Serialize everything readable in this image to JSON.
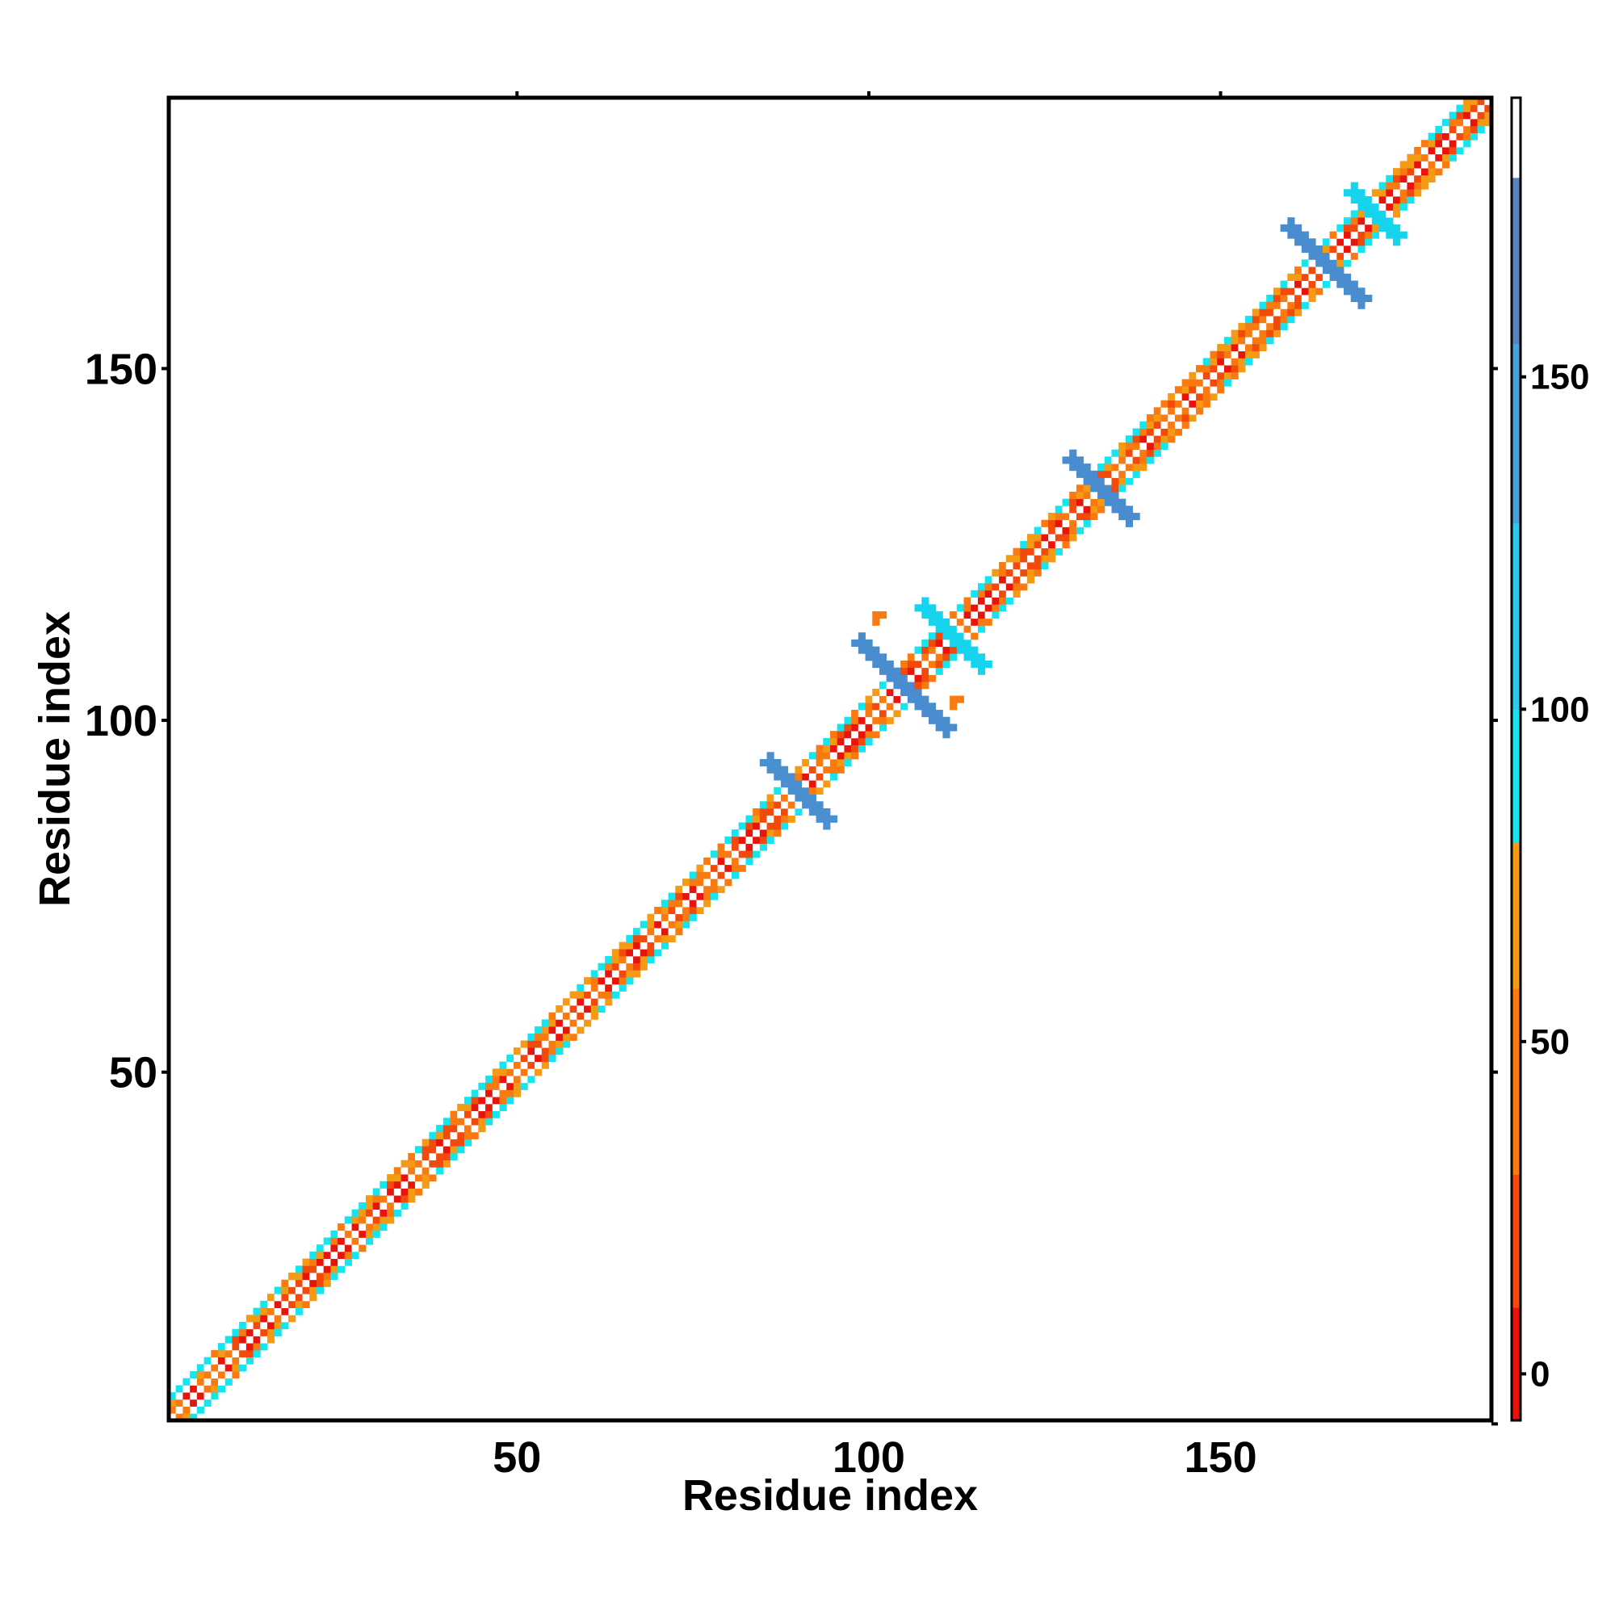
{
  "chart_data": {
    "type": "heatmap",
    "title": "",
    "xlabel": "Residue index",
    "ylabel": "Residue index",
    "xlim": [
      1,
      188
    ],
    "ylim": [
      1,
      188
    ],
    "x_ticks": [
      50,
      100,
      150
    ],
    "y_ticks": [
      50,
      100,
      150
    ],
    "x_tick_labels": [
      "50",
      "100",
      "150"
    ],
    "y_tick_labels": [
      "50",
      "100",
      "150"
    ],
    "colorbar": {
      "ticks": [
        0,
        50,
        100,
        150
      ],
      "tick_labels": [
        "0",
        "50",
        "100",
        "150"
      ],
      "range": [
        -7,
        192
      ],
      "bands": [
        {
          "from": -7,
          "to": 10,
          "color": "#e8140c"
        },
        {
          "from": 10,
          "to": 30,
          "color": "#f24a0c"
        },
        {
          "from": 30,
          "to": 58,
          "color": "#f87a10"
        },
        {
          "from": 58,
          "to": 80,
          "color": "#f59a14"
        },
        {
          "from": 80,
          "to": 100,
          "color": "#16e4ee"
        },
        {
          "from": 100,
          "to": 128,
          "color": "#2ec8e8"
        },
        {
          "from": 128,
          "to": 155,
          "color": "#4aa0d8"
        },
        {
          "from": 155,
          "to": 180,
          "color": "#5a82be"
        },
        {
          "from": 180,
          "to": 192,
          "color": "#ffffff"
        }
      ]
    },
    "pattern": "symmetric contact map concentrated along the main diagonal (band half-width about 3 residues), with cross-shaped patches of high values near residues 90, 105, 112, 133, 165 and 172",
    "diagonal_band_halfwidth": 3,
    "diagonal_palette": [
      "#e8140c",
      "#f24a0c",
      "#f87a10",
      "#f59a14",
      "#16e4ee",
      "#ffffff"
    ],
    "cross_patches": [
      {
        "center": 90,
        "size": 4,
        "color": "#4a90d0"
      },
      {
        "center": 105,
        "size": 6,
        "color": "#4a8cd0"
      },
      {
        "center": 112,
        "size": 4,
        "color": "#16d4ee"
      },
      {
        "center": 133,
        "size": 4,
        "color": "#4a8cd0"
      },
      {
        "center": 165,
        "size": 5,
        "color": "#4a8cd0"
      },
      {
        "center": 172,
        "size": 3,
        "color": "#16d4ee"
      }
    ],
    "off_diagonal_marks": [
      {
        "x": 101,
        "y": 115,
        "color": "#f87a10"
      },
      {
        "x": 112,
        "y": 103,
        "color": "#f87a10"
      }
    ]
  }
}
